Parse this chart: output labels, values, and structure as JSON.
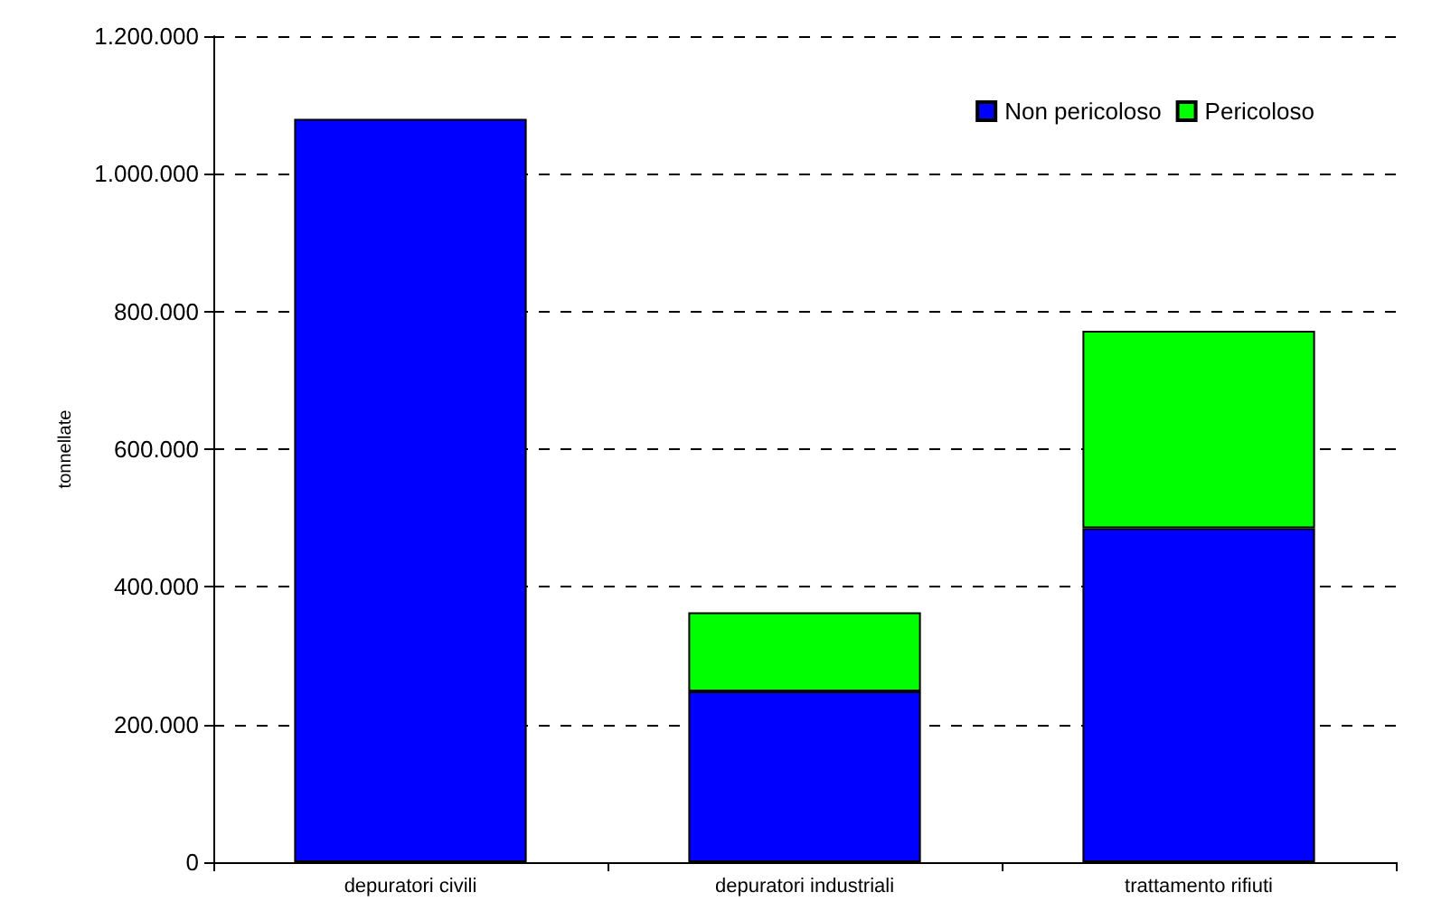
{
  "chart_data": {
    "type": "bar",
    "ylabel": "tonnellate",
    "categories": [
      "depuratori civili",
      "depuratori industriali",
      "trattamento rifiuti"
    ],
    "stacked": true,
    "series": [
      {
        "name": "Non pericoloso",
        "color": "#0000ff",
        "values": [
          1080000,
          248000,
          485000
        ]
      },
      {
        "name": "Pericoloso",
        "color": "#00ff00",
        "values": [
          null,
          115000,
          287000
        ]
      }
    ],
    "ylim": [
      0,
      1200000
    ],
    "yticks": [
      0,
      {
        "value": 200000,
        "label": "200.000"
      },
      {
        "value": 400000,
        "label": "400.000"
      },
      {
        "value": 600000,
        "label": "600.000"
      },
      {
        "value": 800000,
        "label": "800.000"
      },
      {
        "value": 1000000,
        "label": "1.000.000"
      },
      {
        "value": 1200000,
        "label": "1.200.000"
      }
    ],
    "grid": "y",
    "legend": "top right"
  }
}
